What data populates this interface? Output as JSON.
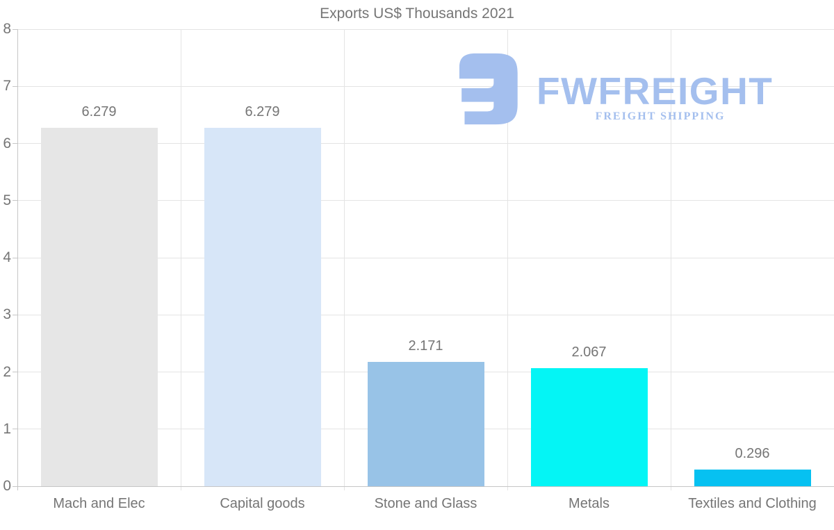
{
  "page": {
    "background": "#ffffff"
  },
  "chart_data": {
    "type": "bar",
    "title": "Exports US$ Thousands 2021",
    "categories": [
      "Mach and Elec",
      "Capital goods",
      "Stone and Glass",
      "Metals",
      "Textiles and Clothing"
    ],
    "values": [
      6.279,
      6.279,
      2.171,
      2.067,
      0.296
    ],
    "value_labels": [
      "6.279",
      "6.279",
      "2.171",
      "2.067",
      "0.296"
    ],
    "bar_colors": [
      "#e6e6e6",
      "#d7e6f8",
      "#98c3e7",
      "#04f5f5",
      "#06c1f1"
    ],
    "xlabel": "",
    "ylabel": "",
    "ylim": [
      0,
      8
    ],
    "yticks": [
      0,
      1,
      2,
      3,
      4,
      5,
      6,
      7,
      8
    ],
    "grid": "horizontal gridlines at each integer tick, vertical gridlines at category boundaries",
    "legend": "none",
    "colors": {
      "grid": "#e4e4e4",
      "axis": "#c6c6c6",
      "text": "#757575"
    }
  },
  "watermark": {
    "brand": "FWFREIGHT",
    "tagline": "FREIGHT SHIPPING",
    "logo_icon": "fwfreight-logo-mark",
    "color": "#a4bfee"
  }
}
